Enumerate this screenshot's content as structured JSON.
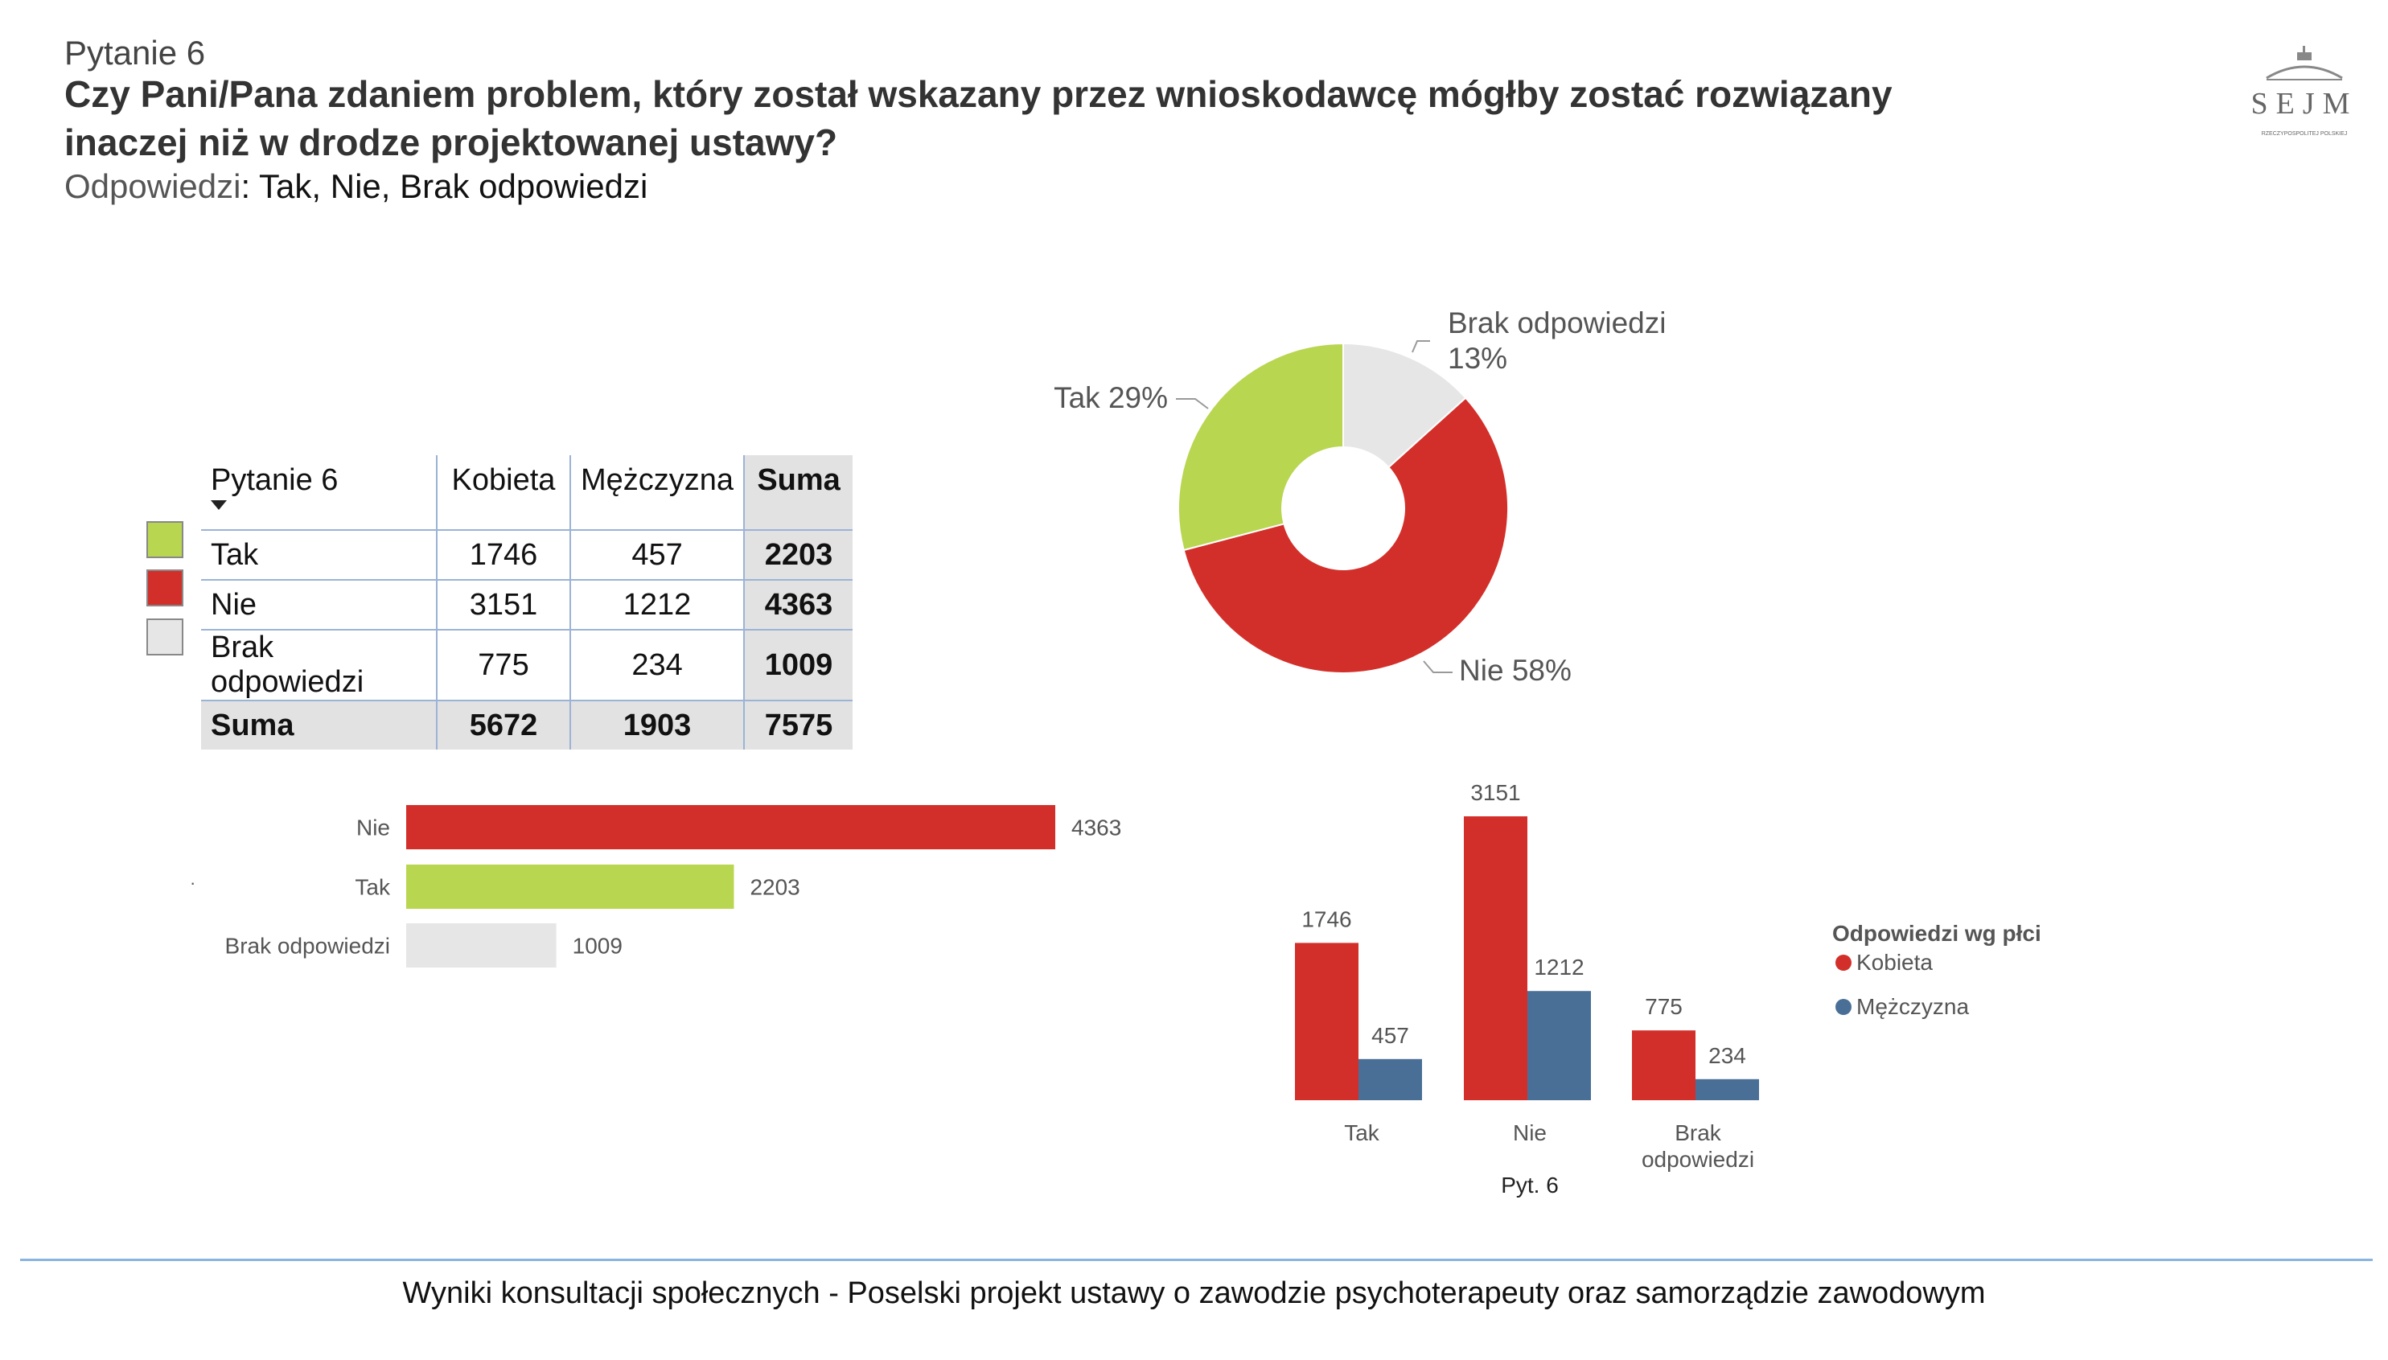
{
  "header": {
    "question_number": "Pytanie 6",
    "title_line_1": "Czy Pani/Pana zdaniem problem, który został wskazany przez wnioskodawcę mógłby zostać rozwiązany",
    "title_line_2": "inaczej niż w drodze projektowanej ustawy?",
    "answers_prefix": "Odpowiedzi",
    "answers_list": ": Tak,  Nie,  Brak odpowiedzi"
  },
  "logo": {
    "word": "SEJM",
    "subtitle": "RZECZYPOSPOLITEJ POLSKIEJ"
  },
  "table": {
    "header": [
      "Pytanie 6",
      "Kobieta",
      "Mężczyzna",
      "Suma"
    ],
    "rows": [
      {
        "label": "Tak",
        "kobieta": "1746",
        "mezczyzna": "457",
        "suma": "2203",
        "swatch": "#b8d64f"
      },
      {
        "label": "Nie",
        "kobieta": "3151",
        "mezczyzna": "1212",
        "suma": "4363",
        "swatch": "#d32f2a"
      },
      {
        "label": "Brak odpowiedzi",
        "kobieta": "775",
        "mezczyzna": "234",
        "suma": "1009",
        "swatch": "#e6e6e6"
      }
    ],
    "total": {
      "label": "Suma",
      "kobieta": "5672",
      "mezczyzna": "1903",
      "suma": "7575"
    }
  },
  "colors": {
    "tak": "#b8d64f",
    "nie": "#d32f2a",
    "brak": "#e6e6e6",
    "kobieta": "#d32f2a",
    "mezczyzna": "#4a6f97"
  },
  "chart_data": [
    {
      "type": "pie",
      "donut": true,
      "slices": [
        {
          "label": "Brak odpowiedzi",
          "value": 1009,
          "percent_label": "13%"
        },
        {
          "label": "Nie",
          "value": 4363,
          "percent_label": "58%"
        },
        {
          "label": "Tak",
          "value": 2203,
          "percent_label": "29%"
        }
      ]
    },
    {
      "type": "bar",
      "orientation": "horizontal",
      "categories": [
        "Nie",
        "Tak",
        "Brak odpowiedzi"
      ],
      "values": [
        4363,
        2203,
        1009
      ],
      "max": 4363
    },
    {
      "type": "bar",
      "orientation": "vertical",
      "xlabel": "Pyt. 6",
      "categories": [
        "Tak",
        "Nie",
        "Brak odpowiedzi"
      ],
      "legend_title": "Odpowiedzi wg płci",
      "legend_placement": "right",
      "series": [
        {
          "name": "Kobieta",
          "values": [
            1746,
            3151,
            775
          ]
        },
        {
          "name": "Mężczyzna",
          "values": [
            457,
            1212,
            234
          ]
        }
      ],
      "max": 3151
    }
  ],
  "footer": {
    "text": "Wyniki konsultacji społecznych - Poselski projekt ustawy o zawodzie psychoterapeuty oraz samorządzie zawodowym"
  }
}
